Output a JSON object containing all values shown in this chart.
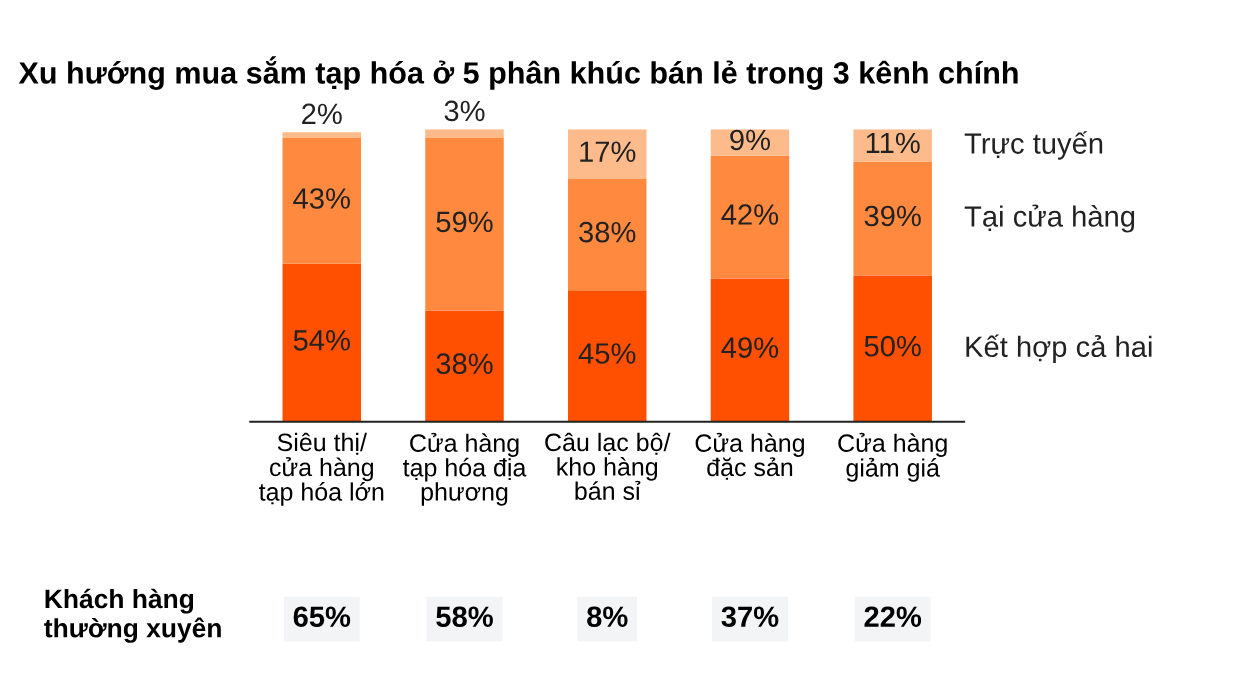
{
  "chart_data": {
    "type": "bar",
    "stacked": true,
    "title": "Xu hướng mua sắm tạp hóa ở 5 phân khúc bán lẻ trong 3 kênh chính",
    "categories": [
      "Siêu thị/\ncửa hàng\ntạp hóa lớn",
      "Cửa hàng\ntạp hóa địa\nphương",
      "Câu lạc bộ/\nkho hàng\nbán sỉ",
      "Cửa hàng\nđặc sản",
      "Cửa hàng\ngiảm giá"
    ],
    "series": [
      {
        "name": "Kết hợp cả hai",
        "color": "#fe5000",
        "values": [
          54,
          38,
          45,
          49,
          50
        ],
        "value_labels": [
          "54%",
          "38%",
          "45%",
          "49%",
          "50%"
        ]
      },
      {
        "name": "Tại cửa hàng",
        "color": "#ff8a3f",
        "values": [
          43,
          59,
          38,
          42,
          39
        ],
        "value_labels": [
          "43%",
          "59%",
          "38%",
          "42%",
          "39%"
        ]
      },
      {
        "name": "Trực tuyến",
        "color": "#fdba8b",
        "values": [
          2,
          3,
          17,
          9,
          11
        ],
        "value_labels": [
          "2%",
          "3%",
          "17%",
          "9%",
          "11%"
        ]
      }
    ],
    "annotations": [
      "Khách hàng\nthường xuyên",
      "65%",
      "58%",
      "8%",
      "37%",
      "22%"
    ]
  }
}
